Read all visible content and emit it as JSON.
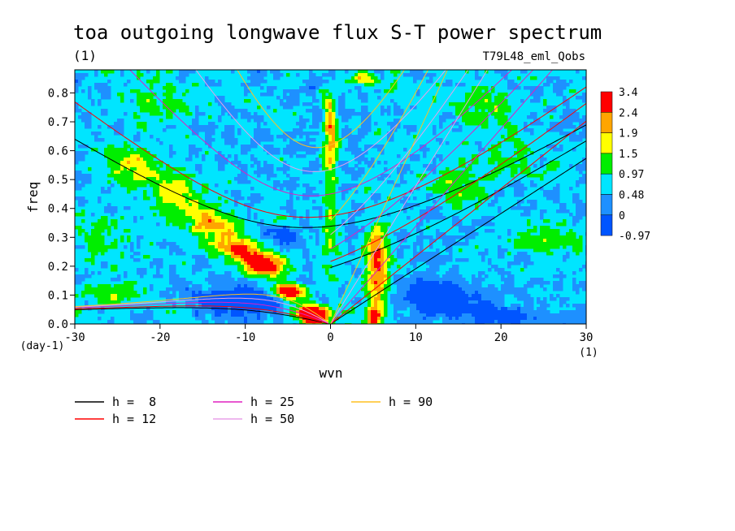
{
  "chart_data": {
    "type": "heatmap",
    "title": "toa outgoing longwave flux S-T power spectrum",
    "subtitle": "(1)",
    "run_label": "T79L48_eml_Qobs",
    "xlabel": "wvn",
    "ylabel": "freq",
    "x_unit": "(1)",
    "y_unit": "(day-1)",
    "xlim": [
      -30,
      30
    ],
    "ylim": [
      0,
      0.88
    ],
    "x_ticks": [
      -30,
      -20,
      -10,
      0,
      10,
      20,
      30
    ],
    "x_tick_labels": [
      "-30",
      "-20",
      "-10",
      "0",
      "10",
      "20",
      "30"
    ],
    "y_ticks": [
      0,
      0.1,
      0.2,
      0.3,
      0.4,
      0.5,
      0.6,
      0.7,
      0.8
    ],
    "y_tick_labels": [
      "0.0",
      "0.1",
      "0.2",
      "0.3",
      "0.4",
      "0.5",
      "0.6",
      "0.7",
      "0.8"
    ],
    "colorbar": {
      "levels": [
        "3.4",
        "2.4",
        "1.9",
        "1.5",
        "0.97",
        "0.48",
        "0",
        "-0.97"
      ],
      "colors": [
        "#ff0000",
        "#ffa500",
        "#ffff00",
        "#00ee00",
        "#00e5ff",
        "#1e90ff",
        "#0055ff"
      ]
    },
    "background_color": "#00e5ff",
    "blobs": [
      {
        "x": -5,
        "y": 0.11,
        "v": 3.6,
        "sx": 1.4,
        "sy": 0.02
      },
      {
        "x": -2.5,
        "y": 0.04,
        "v": 3.4,
        "sx": 1.2,
        "sy": 0.02
      },
      {
        "x": -7.5,
        "y": 0.2,
        "v": 2.6,
        "sx": 1.6,
        "sy": 0.03
      },
      {
        "x": -11,
        "y": 0.27,
        "v": 2.3,
        "sx": 1.8,
        "sy": 0.03
      },
      {
        "x": -14,
        "y": 0.35,
        "v": 2.1,
        "sx": 2.0,
        "sy": 0.04
      },
      {
        "x": -18,
        "y": 0.44,
        "v": 1.8,
        "sx": 2.2,
        "sy": 0.05
      },
      {
        "x": -23,
        "y": 0.54,
        "v": 1.5,
        "sx": 2.5,
        "sy": 0.05
      },
      {
        "x": -9,
        "y": 0.22,
        "v": 2.2,
        "sx": 1.3,
        "sy": 0.02
      },
      {
        "x": 0,
        "y": 0.6,
        "v": 1.8,
        "sx": 0.6,
        "sy": 0.09
      },
      {
        "x": 0,
        "y": 0.32,
        "v": 1.3,
        "sx": 0.6,
        "sy": 0.14
      },
      {
        "x": 0,
        "y": 0.72,
        "v": 1.6,
        "sx": 0.5,
        "sy": 0.05
      },
      {
        "x": 5.5,
        "y": 0.16,
        "v": 2.4,
        "sx": 0.8,
        "sy": 0.08
      },
      {
        "x": 5,
        "y": 0.03,
        "v": 2.8,
        "sx": 0.6,
        "sy": 0.03
      },
      {
        "x": 5.5,
        "y": 0.27,
        "v": 1.7,
        "sx": 1.0,
        "sy": 0.05
      },
      {
        "x": 4,
        "y": 0.85,
        "v": 1.7,
        "sx": 1.2,
        "sy": 0.02
      },
      {
        "x": -1.5,
        "y": 0.02,
        "v": 3.0,
        "sx": 1.0,
        "sy": 0.02
      },
      {
        "x": -10,
        "y": 0.08,
        "v": -0.9,
        "sx": 3.5,
        "sy": 0.035
      },
      {
        "x": 13,
        "y": 0.09,
        "v": -0.9,
        "sx": 3.0,
        "sy": 0.04
      },
      {
        "x": -6,
        "y": 0.31,
        "v": -0.6,
        "sx": 1.5,
        "sy": 0.02
      },
      {
        "x": 20,
        "y": 0.03,
        "v": -0.5,
        "sx": 3.0,
        "sy": 0.02
      },
      {
        "x": 25,
        "y": 0.3,
        "v": 1.3,
        "sx": 3.0,
        "sy": 0.04
      },
      {
        "x": 15,
        "y": 0.48,
        "v": 1.3,
        "sx": 2.5,
        "sy": 0.05
      },
      {
        "x": -20,
        "y": 0.78,
        "v": 1.2,
        "sx": 3.0,
        "sy": 0.05
      },
      {
        "x": 18,
        "y": 0.75,
        "v": 1.2,
        "sx": 3.0,
        "sy": 0.05
      },
      {
        "x": -27,
        "y": 0.3,
        "v": 1.2,
        "sx": 2.0,
        "sy": 0.06
      },
      {
        "x": -25,
        "y": 0.1,
        "v": 1.3,
        "sx": 3.0,
        "sy": 0.03
      },
      {
        "x": 22,
        "y": 0.58,
        "v": 1.1,
        "sx": 3.0,
        "sy": 0.05
      }
    ],
    "dispersion_curves": [
      {
        "h": 8,
        "color": "#000000"
      },
      {
        "h": 12,
        "color": "#ff0000"
      },
      {
        "h": 25,
        "color": "#e020c0"
      },
      {
        "h": 50,
        "color": "#e8a0e8"
      },
      {
        "h": 90,
        "color": "#ffc020"
      }
    ]
  },
  "legend": [
    {
      "label": "h =  8",
      "color": "#000000"
    },
    {
      "label": "h = 12",
      "color": "#ff0000"
    },
    {
      "label": "h = 25",
      "color": "#e020c0"
    },
    {
      "label": "h = 50",
      "color": "#e8a0e8"
    },
    {
      "label": "h = 90",
      "color": "#ffc020"
    }
  ]
}
